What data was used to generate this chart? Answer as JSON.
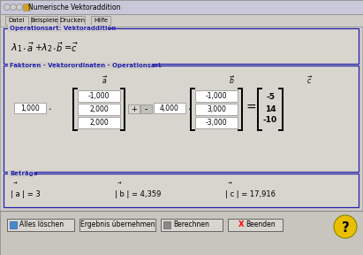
{
  "title": "Numerische Vektoraddition",
  "bg_outer": "#b0adb0",
  "bg_main": "#d0cdc8",
  "bg_panel": "#d8d5ce",
  "menu_items": [
    "Datei",
    "Beispiele",
    "Drucken",
    "Hilfe"
  ],
  "section1_title": "Operationsart: Vektoraddition",
  "section2_title": "Faktoren - Vektorordinaten - Operationsart",
  "lambda1": "1,000",
  "vec_a": [
    "-1,000",
    "2,000",
    "2,000"
  ],
  "lambda2": "4,000",
  "vec_b": [
    "-1,000",
    "3,000",
    "-3,000"
  ],
  "vec_c": [
    "-5",
    "14",
    "-10"
  ],
  "section3_title": "Beträge",
  "mag_a_label": "| a | = 3",
  "mag_b_label": "| b | = 4,359",
  "mag_c_label": "| c | = 17,916",
  "buttons": [
    "Alles löschen",
    "Ergebnis übernehmen",
    "Berechnen",
    "Beenden"
  ],
  "frame_color": "#2222aa",
  "box_bg": "#ffffff",
  "titlebar_bg": "#c8c8d8",
  "menubar_bg": "#d0cdc8"
}
